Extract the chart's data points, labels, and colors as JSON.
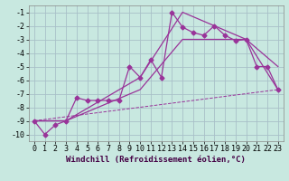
{
  "bg_color": "#c8e8e0",
  "grid_color": "#a8c0c8",
  "line_color": "#993399",
  "marker": "D",
  "marker_size": 2.5,
  "xlabel": "Windchill (Refroidissement éolien,°C)",
  "xlabel_fontsize": 6.5,
  "tick_fontsize": 6,
  "xlim": [
    -0.5,
    23.5
  ],
  "ylim": [
    -10.5,
    -0.5
  ],
  "yticks": [
    -10,
    -9,
    -8,
    -7,
    -6,
    -5,
    -4,
    -3,
    -2,
    -1
  ],
  "xticks": [
    0,
    1,
    2,
    3,
    4,
    5,
    6,
    7,
    8,
    9,
    10,
    11,
    12,
    13,
    14,
    15,
    16,
    17,
    18,
    19,
    20,
    21,
    22,
    23
  ],
  "series": [
    {
      "x": [
        0,
        1,
        2,
        3,
        4,
        5,
        6,
        7,
        8,
        9,
        10,
        11,
        12,
        13,
        14,
        15,
        16,
        17,
        18,
        19,
        20,
        21,
        22,
        23
      ],
      "y": [
        -9.0,
        -10.0,
        -9.3,
        -9.0,
        -7.3,
        -7.5,
        -7.5,
        -7.5,
        -7.5,
        -5.0,
        -5.8,
        -4.5,
        -5.8,
        -1.0,
        -2.1,
        -2.5,
        -2.7,
        -2.0,
        -2.7,
        -3.1,
        -3.0,
        -5.0,
        -5.0,
        -6.7
      ],
      "dashed": false,
      "markers": true
    },
    {
      "x": [
        0,
        3,
        10,
        14,
        20,
        23
      ],
      "y": [
        -9.0,
        -9.0,
        -6.7,
        -3.0,
        -3.0,
        -5.0
      ],
      "dashed": false,
      "markers": false
    },
    {
      "x": [
        0,
        3,
        10,
        14,
        20,
        23
      ],
      "y": [
        -9.0,
        -9.0,
        -5.8,
        -1.0,
        -3.0,
        -6.7
      ],
      "dashed": false,
      "markers": false
    },
    {
      "x": [
        0,
        23
      ],
      "y": [
        -9.0,
        -6.7
      ],
      "dashed": true,
      "markers": false
    }
  ]
}
